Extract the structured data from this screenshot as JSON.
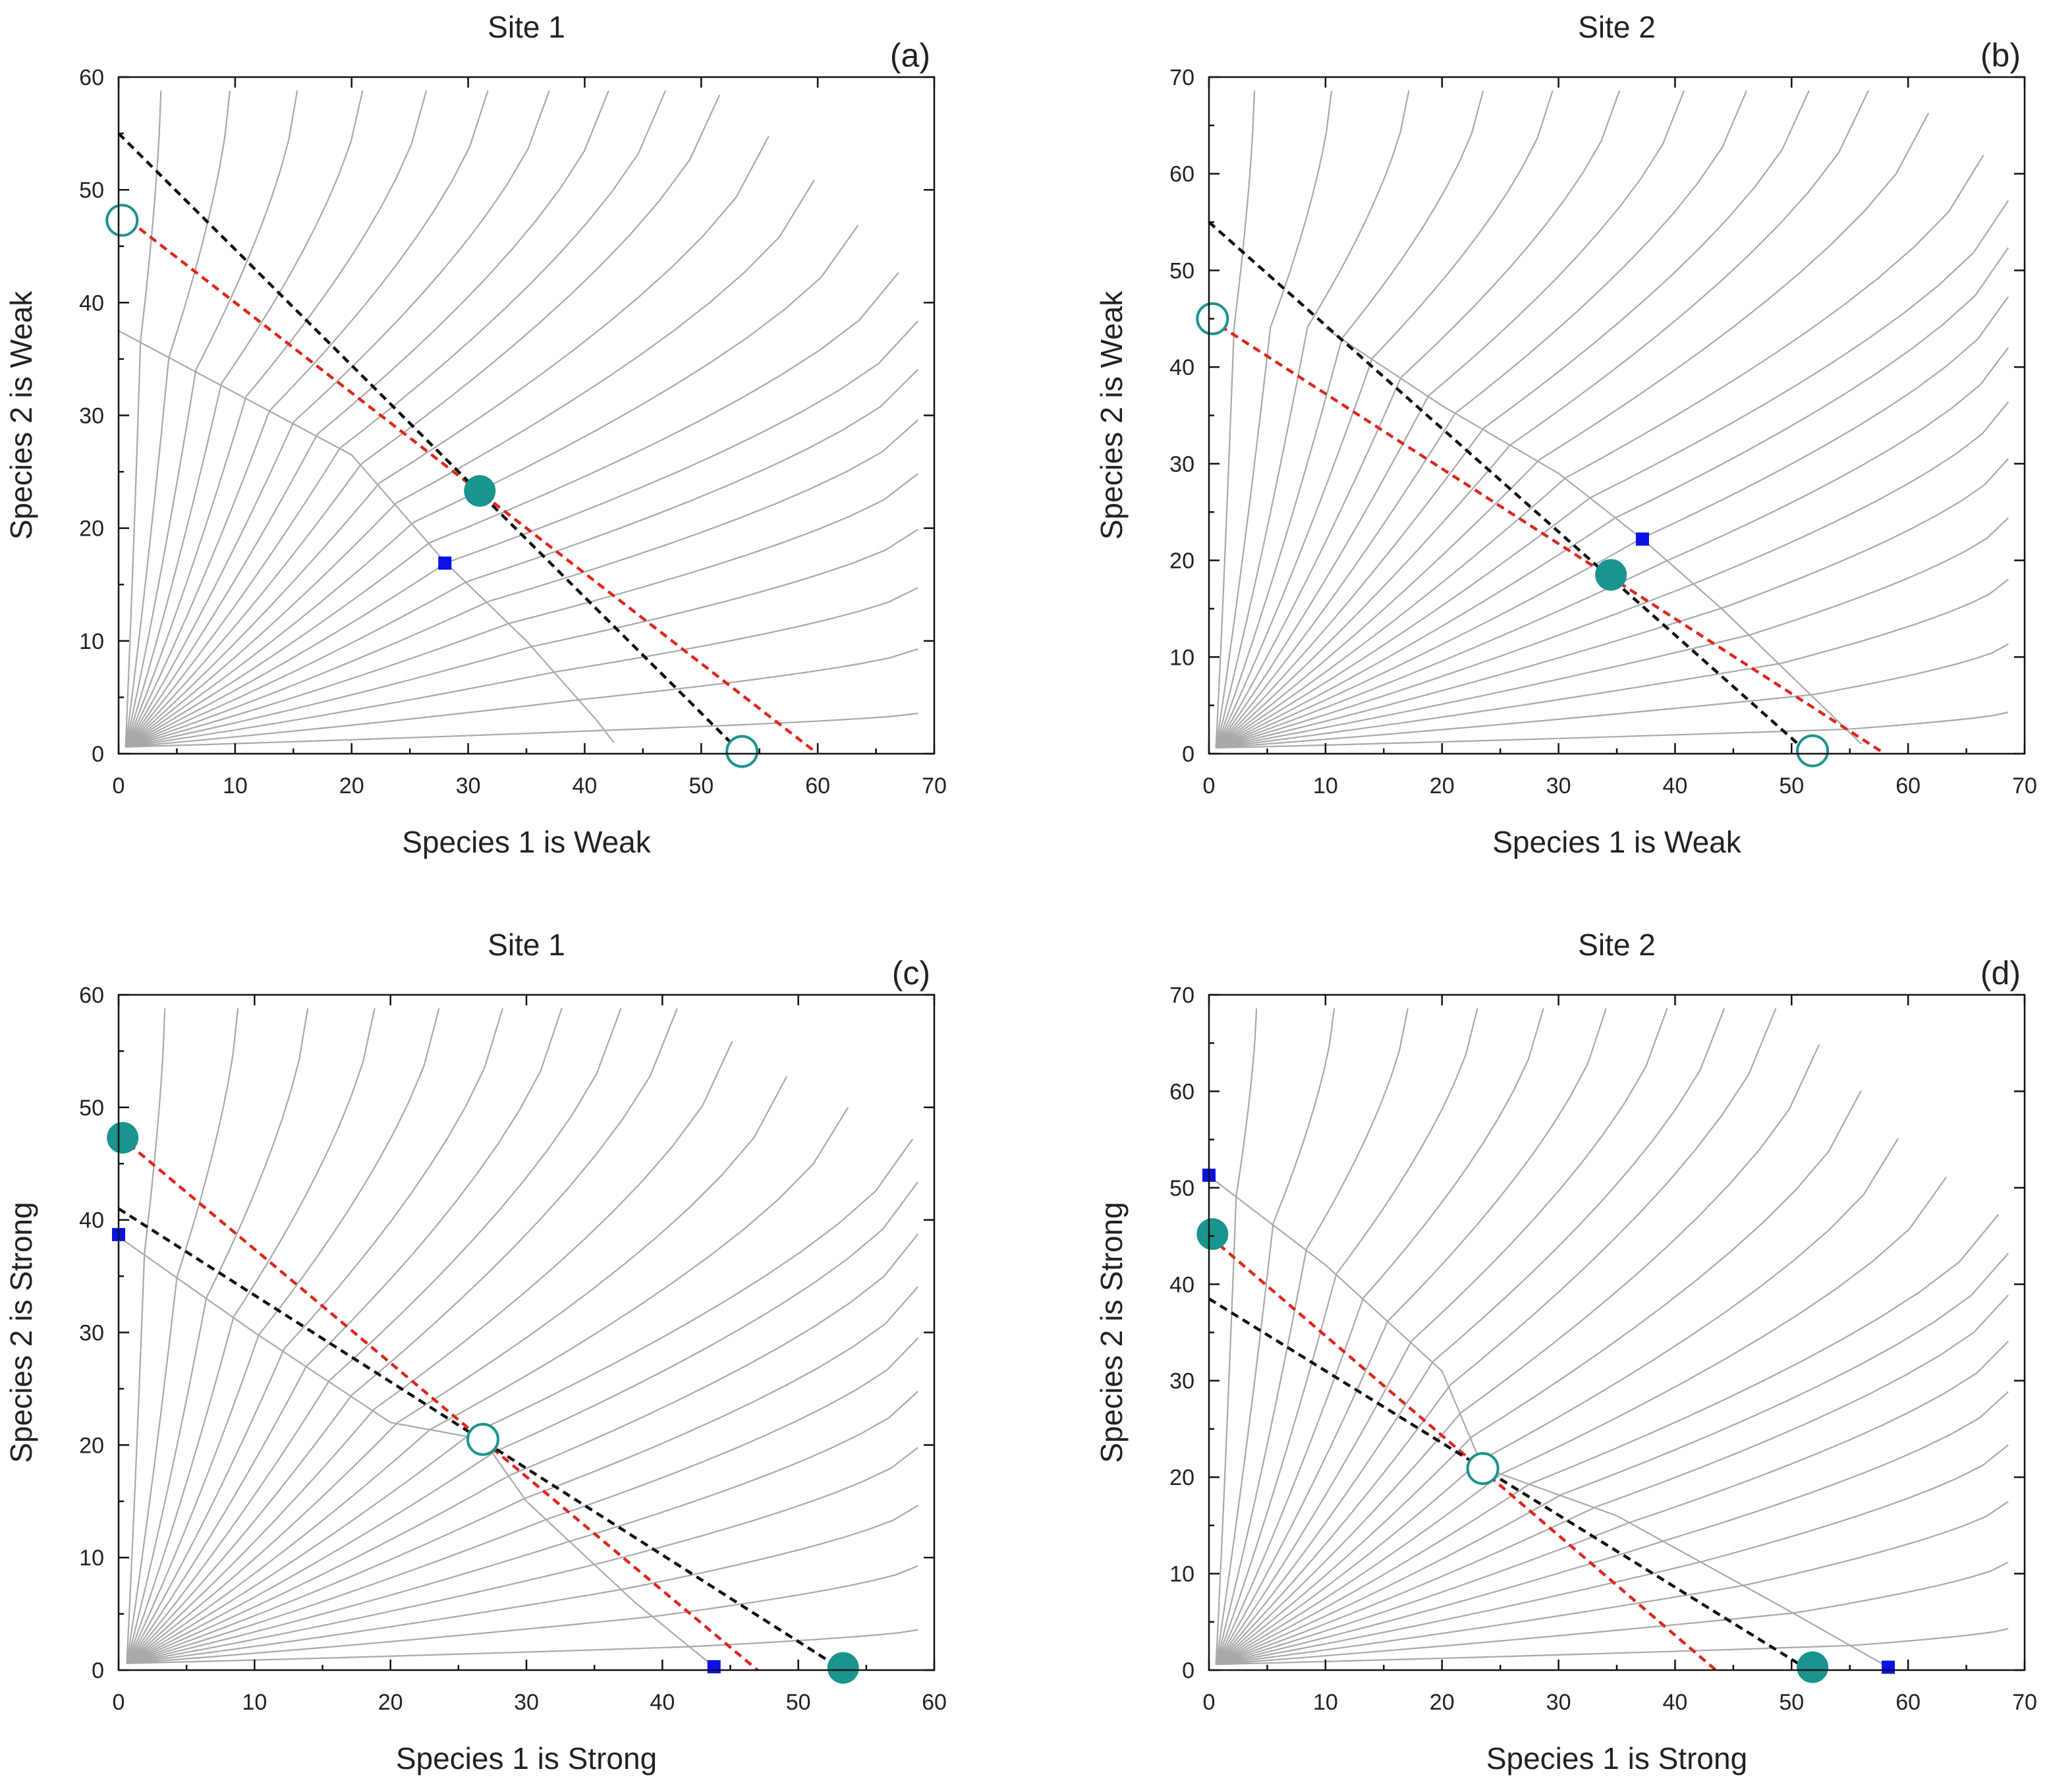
{
  "chart_data": [
    {
      "id": "a",
      "type": "line",
      "title": "Site 1",
      "panel_label": "(a)",
      "xlabel": "Species 1 is Weak",
      "ylabel": "Species 2 is Weak",
      "xlim": [
        0,
        70
      ],
      "ylim": [
        0,
        60
      ],
      "xticks": [
        0,
        10,
        20,
        30,
        40,
        50,
        60,
        70
      ],
      "yticks": [
        0,
        10,
        20,
        30,
        40,
        50,
        60
      ],
      "xtick_labels": [
        "0",
        "10",
        "20",
        "30",
        "40",
        "50",
        "60",
        "70"
      ],
      "ytick_labels": [
        "0",
        "10",
        "20",
        "30",
        "40",
        "50",
        "60"
      ],
      "separatrix": [
        [
          0,
          37.5
        ],
        [
          10,
          32
        ],
        [
          20,
          26.5
        ],
        [
          28,
          17
        ],
        [
          35,
          10
        ],
        [
          41,
          3
        ],
        [
          42.5,
          1
        ]
      ],
      "series": [
        {
          "name": "red isocline",
          "color": "#e0261c",
          "style": "dashed",
          "x": [
            0,
            60
          ],
          "y": [
            48,
            0
          ]
        },
        {
          "name": "black isocline",
          "color": "#111111",
          "style": "dashed",
          "x": [
            0,
            53.5
          ],
          "y": [
            55,
            0
          ]
        }
      ],
      "points": [
        {
          "kind": "open-circle",
          "x": 0.3,
          "y": 47.3,
          "color": "#1a948e"
        },
        {
          "kind": "filled-circle",
          "x": 31,
          "y": 23.3,
          "color": "#1a948e"
        },
        {
          "kind": "square",
          "x": 28,
          "y": 16.9,
          "color": "#0a12e6"
        },
        {
          "kind": "open-circle",
          "x": 53.5,
          "y": 0.2,
          "color": "#1a948e"
        }
      ]
    },
    {
      "id": "b",
      "type": "line",
      "title": "Site 2",
      "panel_label": "(b)",
      "xlabel": "Species 1 is Weak",
      "ylabel": "Species 2 is Weak",
      "xlim": [
        0,
        70
      ],
      "ylim": [
        0,
        70
      ],
      "xticks": [
        0,
        10,
        20,
        30,
        40,
        50,
        60,
        70
      ],
      "yticks": [
        0,
        10,
        20,
        30,
        40,
        50,
        60,
        70
      ],
      "xtick_labels": [
        "0",
        "10",
        "20",
        "30",
        "40",
        "50",
        "60",
        "70"
      ],
      "ytick_labels": [
        "0",
        "10",
        "20",
        "30",
        "40",
        "50",
        "60",
        "70"
      ],
      "separatrix": [
        [
          10,
          44
        ],
        [
          20,
          36
        ],
        [
          30,
          29
        ],
        [
          37.2,
          22.2
        ],
        [
          44,
          15
        ],
        [
          50,
          8
        ],
        [
          56,
          1
        ]
      ],
      "series": [
        {
          "name": "red isocline",
          "color": "#e0261c",
          "style": "dashed",
          "x": [
            0,
            58
          ],
          "y": [
            45,
            0
          ]
        },
        {
          "name": "black isocline",
          "color": "#111111",
          "style": "dashed",
          "x": [
            0,
            51.5
          ],
          "y": [
            55,
            0
          ]
        }
      ],
      "points": [
        {
          "kind": "open-circle",
          "x": 0.3,
          "y": 45,
          "color": "#1a948e"
        },
        {
          "kind": "filled-circle",
          "x": 34.5,
          "y": 18.5,
          "color": "#1a948e"
        },
        {
          "kind": "square",
          "x": 37.2,
          "y": 22.2,
          "color": "#0a12e6"
        },
        {
          "kind": "open-circle",
          "x": 51.8,
          "y": 0.3,
          "color": "#1a948e"
        }
      ]
    },
    {
      "id": "c",
      "type": "line",
      "title": "Site 1",
      "panel_label": "(c)",
      "xlabel": "Species 1 is Strong",
      "ylabel": "Species 2 is Strong",
      "xlim": [
        0,
        60
      ],
      "ylim": [
        0,
        60
      ],
      "xticks": [
        0,
        10,
        20,
        30,
        40,
        50,
        60
      ],
      "yticks": [
        0,
        10,
        20,
        30,
        40,
        50,
        60
      ],
      "xtick_labels": [
        "0",
        "10",
        "20",
        "30",
        "40",
        "50",
        "60"
      ],
      "ytick_labels": [
        "0",
        "10",
        "20",
        "30",
        "40",
        "50",
        "60"
      ],
      "separatrix": [
        [
          0,
          38.5
        ],
        [
          10,
          30
        ],
        [
          20,
          22
        ],
        [
          26.8,
          20.5
        ],
        [
          30,
          15
        ],
        [
          38,
          6
        ],
        [
          43.8,
          0.3
        ]
      ],
      "series": [
        {
          "name": "red isocline",
          "color": "#e0261c",
          "style": "dashed",
          "x": [
            0,
            47
          ],
          "y": [
            47.5,
            0
          ]
        },
        {
          "name": "black isocline",
          "color": "#111111",
          "style": "dashed",
          "x": [
            0,
            53.3
          ],
          "y": [
            41,
            0
          ]
        }
      ],
      "points": [
        {
          "kind": "filled-circle",
          "x": 0.3,
          "y": 47.3,
          "color": "#1a948e"
        },
        {
          "kind": "square",
          "x": 0,
          "y": 38.7,
          "color": "#0a12e6"
        },
        {
          "kind": "open-circle",
          "x": 26.8,
          "y": 20.5,
          "color": "#1a948e"
        },
        {
          "kind": "square",
          "x": 43.8,
          "y": 0.3,
          "color": "#0a12e6"
        },
        {
          "kind": "filled-circle",
          "x": 53.3,
          "y": 0.2,
          "color": "#1a948e"
        }
      ]
    },
    {
      "id": "d",
      "type": "line",
      "title": "Site 2",
      "panel_label": "(d)",
      "xlabel": "Species 1 is Strong",
      "ylabel": "Species 2 is Strong",
      "xlim": [
        0,
        70
      ],
      "ylim": [
        0,
        70
      ],
      "xticks": [
        0,
        10,
        20,
        30,
        40,
        50,
        60,
        70
      ],
      "yticks": [
        0,
        10,
        20,
        30,
        40,
        50,
        60,
        70
      ],
      "xtick_labels": [
        "0",
        "10",
        "20",
        "30",
        "40",
        "50",
        "60",
        "70"
      ],
      "ytick_labels": [
        "0",
        "10",
        "20",
        "30",
        "40",
        "50",
        "60",
        "70"
      ],
      "separatrix": [
        [
          0,
          51.2
        ],
        [
          10,
          42
        ],
        [
          20,
          31
        ],
        [
          23.5,
          21
        ],
        [
          35,
          16
        ],
        [
          50,
          6
        ],
        [
          58.3,
          0.3
        ]
      ],
      "series": [
        {
          "name": "red isocline",
          "color": "#e0261c",
          "style": "dashed",
          "x": [
            0,
            43.5
          ],
          "y": [
            45,
            0
          ]
        },
        {
          "name": "black isocline",
          "color": "#111111",
          "style": "dashed",
          "x": [
            0,
            51.5
          ],
          "y": [
            38.5,
            0
          ]
        }
      ],
      "points": [
        {
          "kind": "square",
          "x": 0,
          "y": 51.3,
          "color": "#0a12e6"
        },
        {
          "kind": "filled-circle",
          "x": 0.3,
          "y": 45.2,
          "color": "#1a948e"
        },
        {
          "kind": "open-circle",
          "x": 23.5,
          "y": 20.9,
          "color": "#1a948e"
        },
        {
          "kind": "filled-circle",
          "x": 51.8,
          "y": 0.3,
          "color": "#1a948e"
        },
        {
          "kind": "square",
          "x": 58.3,
          "y": 0.3,
          "color": "#0a12e6"
        }
      ]
    }
  ]
}
